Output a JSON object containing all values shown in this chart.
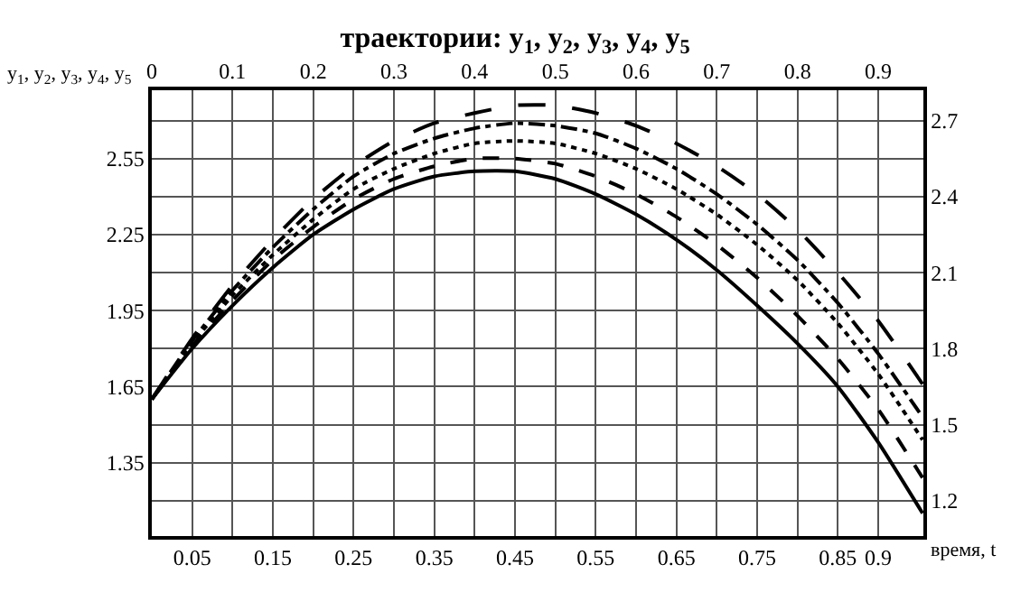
{
  "chart_data": {
    "type": "line",
    "title": "траектории: y$_{1}$, y$_{2}$, y$_{3}$, y$_{4}$, y$_{5}$",
    "xlabel": "время, t",
    "ylabel": "y$_{1}$, y$_{2}$, y$_{3}$, y$_{4}$, y$_{5}$",
    "x": [
      0,
      0.05,
      0.1,
      0.15,
      0.2,
      0.25,
      0.3,
      0.35,
      0.4,
      0.45,
      0.5,
      0.55,
      0.6,
      0.65,
      0.7,
      0.75,
      0.8,
      0.85,
      0.9,
      0.955
    ],
    "series": [
      {
        "color": "#000000",
        "line_style": "solid",
        "values": [
          1.6,
          1.8,
          1.97,
          2.12,
          2.25,
          2.35,
          2.43,
          2.48,
          2.5,
          2.5,
          2.47,
          2.41,
          2.33,
          2.23,
          2.11,
          1.97,
          1.82,
          1.65,
          1.43,
          1.15
        ]
      },
      {
        "color": "#000000",
        "line_style": "dashed",
        "values": [
          1.6,
          1.81,
          1.99,
          2.15,
          2.28,
          2.39,
          2.47,
          2.52,
          2.55,
          2.55,
          2.53,
          2.48,
          2.41,
          2.32,
          2.21,
          2.08,
          1.93,
          1.76,
          1.56,
          1.29
        ]
      },
      {
        "color": "#000000",
        "line_style": "dotted",
        "values": [
          1.6,
          1.82,
          2.01,
          2.17,
          2.31,
          2.43,
          2.51,
          2.57,
          2.61,
          2.62,
          2.61,
          2.57,
          2.51,
          2.43,
          2.33,
          2.21,
          2.07,
          1.9,
          1.7,
          1.44
        ]
      },
      {
        "color": "#000000",
        "line_style": "dashdot",
        "values": [
          1.6,
          1.83,
          2.03,
          2.2,
          2.35,
          2.48,
          2.57,
          2.63,
          2.67,
          2.69,
          2.68,
          2.65,
          2.59,
          2.51,
          2.41,
          2.29,
          2.15,
          1.98,
          1.78,
          1.53
        ]
      },
      {
        "color": "#000000",
        "line_style": "longdash",
        "values": [
          1.6,
          1.84,
          2.05,
          2.23,
          2.39,
          2.52,
          2.62,
          2.69,
          2.73,
          2.76,
          2.76,
          2.73,
          2.68,
          2.61,
          2.52,
          2.41,
          2.27,
          2.1,
          1.91,
          1.66
        ]
      }
    ],
    "xlim": [
      0,
      0.956
    ],
    "xticks": [
      0.05,
      0.15,
      0.25,
      0.35,
      0.45,
      0.55,
      0.65,
      0.75,
      0.85,
      0.9
    ],
    "x2lim": [
      0,
      0.956
    ],
    "x2ticks": [
      0,
      0.1,
      0.2,
      0.3,
      0.4,
      0.5,
      0.6,
      0.7,
      0.8,
      0.9
    ],
    "ylim": [
      1.06,
      2.82
    ],
    "yticks": [
      1.35,
      1.65,
      1.95,
      2.25,
      2.55
    ],
    "y2lim": [
      1.06,
      2.82
    ],
    "y2ticks": [
      1.2,
      1.5,
      1.8,
      2.1,
      2.4,
      2.7
    ],
    "grid": true,
    "marker": "none"
  }
}
